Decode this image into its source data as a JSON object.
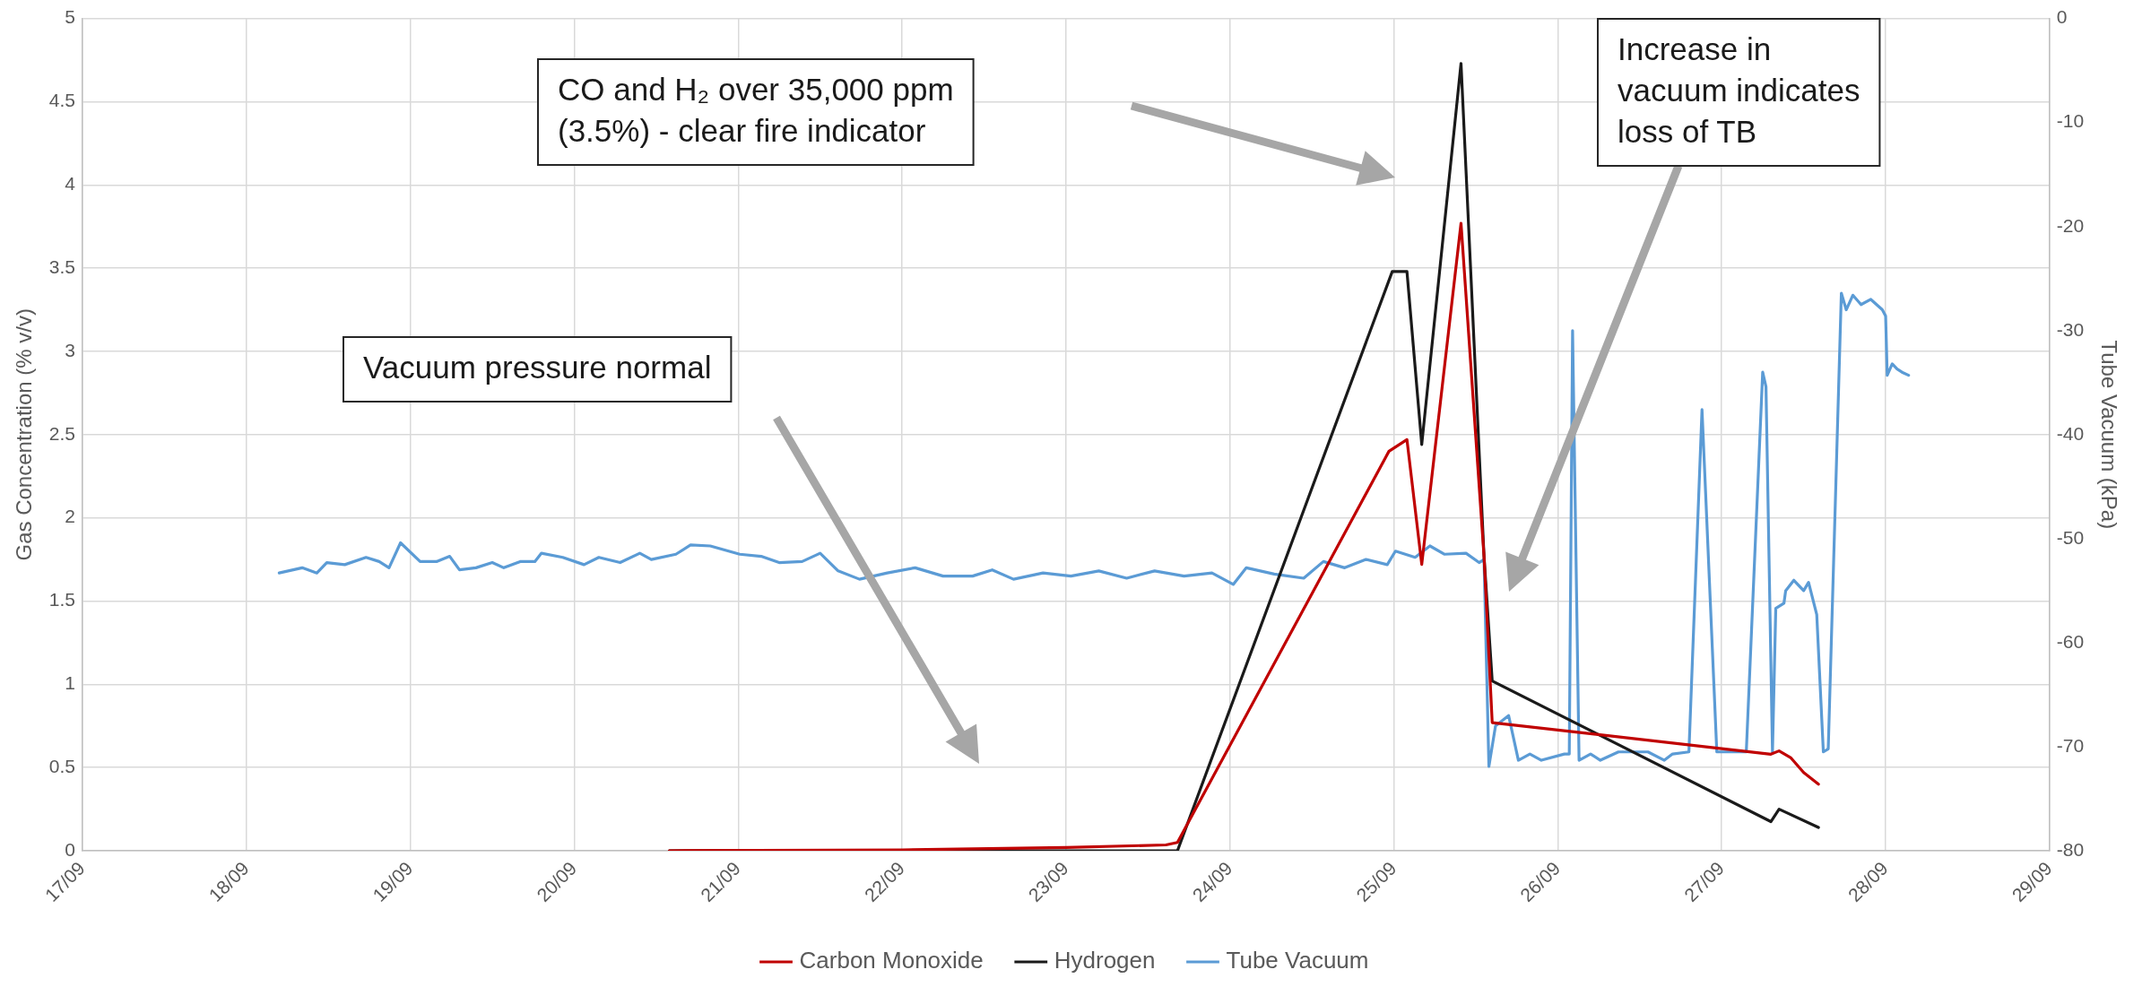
{
  "chart_data": {
    "type": "line",
    "ylabel": "Gas Concentration (% v/v)",
    "y2label": "Tube Vacuum (kPa)",
    "xlim": [
      "--09-17",
      "--09-29"
    ],
    "xticks": [
      {
        "value": "--09-17",
        "label": "17/09"
      },
      {
        "value": "--09-18",
        "label": "18/09"
      },
      {
        "value": "--09-19",
        "label": "19/09"
      },
      {
        "value": "--09-20",
        "label": "20/09"
      },
      {
        "value": "--09-21",
        "label": "21/09"
      },
      {
        "value": "--09-22",
        "label": "22/09"
      },
      {
        "value": "--09-23",
        "label": "23/09"
      },
      {
        "value": "--09-24",
        "label": "24/09"
      },
      {
        "value": "--09-25",
        "label": "25/09"
      },
      {
        "value": "--09-26",
        "label": "26/09"
      },
      {
        "value": "--09-27",
        "label": "27/09"
      },
      {
        "value": "--09-28",
        "label": "28/09"
      },
      {
        "value": "--09-29",
        "label": "29/09"
      }
    ],
    "ylim": [
      0,
      5
    ],
    "yticks": [
      0,
      0.5,
      1,
      1.5,
      2,
      2.5,
      3,
      3.5,
      4,
      4.5,
      5
    ],
    "y2lim": [
      -80,
      0
    ],
    "y2ticks": [
      -80,
      -70,
      -60,
      -50,
      -40,
      -30,
      -20,
      -10,
      0
    ],
    "grid": true,
    "legend": "bottom",
    "marker": "none",
    "line_style": "solid",
    "series": [
      {
        "name": "Carbon Monoxide",
        "color": "#c00000",
        "x": [
          "--09-20T13:55",
          "--09-22T00:00",
          "--09-23T00:00",
          "--09-23T14:38",
          "--09-23T16:19",
          "--09-24T23:17",
          "--09-25T01:55",
          "--09-25T04:05",
          "--09-25T09:50",
          "--09-25T13:12",
          "--09-25T14:24",
          "--09-27T07:12",
          "--09-27T08:24",
          "--09-27T10:05",
          "--09-27T12:00",
          "--09-27T14:10"
        ],
        "values": [
          0,
          0.005,
          0.02,
          0.035,
          0.05,
          2.4,
          2.47,
          1.72,
          3.77,
          1.77,
          0.77,
          0.58,
          0.6,
          0.56,
          0.47,
          0.4
        ]
      },
      {
        "name": "Hydrogen",
        "color": "#1a1a1a",
        "x": [
          "--09-20T13:55",
          "--09-23T16:19",
          "--09-24T23:46",
          "--09-25T01:55",
          "--09-25T04:05",
          "--09-25T09:50",
          "--09-25T13:12",
          "--09-25T14:24",
          "--09-27T07:12",
          "--09-27T08:24",
          "--09-27T14:10"
        ],
        "values": [
          0,
          0,
          3.48,
          3.48,
          2.44,
          4.73,
          1.77,
          1.02,
          0.175,
          0.25,
          0.14
        ]
      },
      {
        "name": "Tube Vacuum",
        "color": "#5b9bd5",
        "axis": "y2",
        "x": [
          "--09-18T04:48",
          "--09-18T08:10",
          "--09-18T10:19",
          "--09-18T11:46",
          "--09-18T14:24",
          "--09-18T17:31",
          "--09-18T19:26",
          "--09-18T20:53",
          "--09-18T22:34",
          "--09-19T01:26",
          "--09-19T03:50",
          "--09-19T05:46",
          "--09-19T07:12",
          "--09-19T09:36",
          "--09-19T12:00",
          "--09-19T13:41",
          "--09-19T16:05",
          "--09-19T18:14",
          "--09-19T19:12",
          "--09-19T22:19",
          "--09-20T01:26",
          "--09-20T03:36",
          "--09-20T06:43",
          "--09-20T09:36",
          "--09-20T11:17",
          "--09-20T14:53",
          "--09-20T17:02",
          "--09-20T19:55",
          "--09-21T00:14",
          "--09-21T03:22",
          "--09-21T06:00",
          "--09-21T09:22",
          "--09-21T12:00",
          "--09-21T14:38",
          "--09-21T17:46",
          "--09-21T21:50",
          "--09-22T01:55",
          "--09-22T06:00",
          "--09-22T10:19",
          "--09-22T13:12",
          "--09-22T16:19",
          "--09-22T20:38",
          "--09-23T00:43",
          "--09-23T04:48",
          "--09-23T08:53",
          "--09-23T12:58",
          "--09-23T17:17",
          "--09-23T21:22",
          "--09-24T00:29",
          "--09-24T02:24",
          "--09-24T06:29",
          "--09-24T10:48",
          "--09-24T13:41",
          "--09-24T16:48",
          "--09-24T19:55",
          "--09-24T23:02",
          "--09-25T00:14",
          "--09-25T03:07",
          "--09-25T05:17",
          "--09-25T07:26",
          "--09-25T10:34",
          "--09-25T12:29",
          "--09-25T13:12",
          "--09-25T13:55",
          "--09-25T14:53",
          "--09-25T16:48",
          "--09-25T18:14",
          "--09-25T19:55",
          "--09-25T21:36",
          "--09-26T00:58",
          "--09-26T01:41",
          "--09-26T02:10",
          "--09-26T03:07",
          "--09-26T04:48",
          "--09-26T06:14",
          "--09-26T08:53",
          "--09-26T13:12",
          "--09-26T15:36",
          "--09-26T16:48",
          "--09-26T19:12",
          "--09-26T21:07",
          "--09-26T23:17",
          "--09-27T03:36",
          "--09-27T06:00",
          "--09-27T06:29",
          "--09-27T07:26",
          "--09-27T07:55",
          "--09-27T09:07",
          "--09-27T09:22",
          "--09-27T10:34",
          "--09-27T12:00",
          "--09-27T12:43",
          "--09-27T13:55",
          "--09-27T14:53",
          "--09-27T15:36",
          "--09-27T17:31",
          "--09-27T18:14",
          "--09-27T19:12",
          "--09-27T20:24",
          "--09-27T21:50",
          "--09-27T23:31",
          "--09-28T00:00",
          "--09-28T00:14",
          "--09-28T00:58",
          "--09-28T01:41",
          "--09-28T02:24",
          "--09-28T03:22"
        ],
        "values": [
          -53.3,
          -52.8,
          -53.3,
          -52.3,
          -52.5,
          -51.8,
          -52.2,
          -52.8,
          -50.4,
          -52.2,
          -52.2,
          -51.7,
          -53.0,
          -52.8,
          -52.3,
          -52.8,
          -52.2,
          -52.2,
          -51.4,
          -51.8,
          -52.5,
          -51.8,
          -52.3,
          -51.4,
          -52.0,
          -51.5,
          -50.6,
          -50.7,
          -51.5,
          -51.7,
          -52.3,
          -52.2,
          -51.4,
          -53.1,
          -53.9,
          -53.3,
          -52.8,
          -53.6,
          -53.6,
          -53.0,
          -53.9,
          -53.3,
          -53.6,
          -53.1,
          -53.8,
          -53.1,
          -53.6,
          -53.3,
          -54.4,
          -52.8,
          -53.4,
          -53.8,
          -52.2,
          -52.8,
          -52.0,
          -52.5,
          -51.2,
          -51.8,
          -50.7,
          -51.5,
          -51.4,
          -52.3,
          -52.0,
          -71.9,
          -68.0,
          -67.0,
          -71.3,
          -70.7,
          -71.3,
          -70.7,
          -70.7,
          -30.0,
          -71.3,
          -70.7,
          -71.3,
          -70.5,
          -70.5,
          -71.3,
          -70.7,
          -70.5,
          -37.6,
          -70.5,
          -70.5,
          -34.0,
          -35.4,
          -70.5,
          -56.7,
          -56.2,
          -55.0,
          -54.0,
          -55.0,
          -54.2,
          -57.3,
          -70.5,
          -70.2,
          -26.4,
          -28.0,
          -26.6,
          -27.5,
          -27.0,
          -28.0,
          -28.6,
          -34.3,
          -33.2,
          -33.7,
          -34.0,
          -34.3
        ]
      }
    ],
    "annotations": [
      "Vacuum pressure normal",
      "CO and H₂ over 35,000 ppm (3.5%) - clear fire indicator",
      "Increase in vacuum indicates loss of TB"
    ]
  }
}
